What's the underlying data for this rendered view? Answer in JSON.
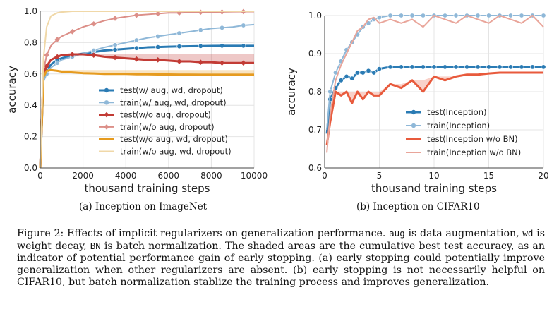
{
  "chart_data": [
    {
      "type": "line",
      "id": "imagenet",
      "xlabel": "thousand training steps",
      "ylabel": "accuracy",
      "xlim": [
        0,
        10000
      ],
      "ylim": [
        0,
        1.0
      ],
      "xticks": [
        "0",
        "2000",
        "4000",
        "6000",
        "8000",
        "10000"
      ],
      "xtick_values": [
        0,
        2000,
        4000,
        6000,
        8000,
        10000
      ],
      "yticks": [
        "0.0",
        "0.2",
        "0.4",
        "0.6",
        "0.8",
        "1.0"
      ],
      "ytick_values": [
        0,
        0.2,
        0.4,
        0.6,
        0.8,
        1.0
      ],
      "x": [
        0,
        150,
        300,
        500,
        800,
        1000,
        1500,
        2000,
        2500,
        3000,
        3500,
        4000,
        4500,
        5000,
        5500,
        6000,
        6500,
        7000,
        7500,
        8000,
        8500,
        9000,
        9500,
        10000
      ],
      "series": [
        {
          "name": "test(w/ aug, wd, dropout)",
          "color": "#2a7bb4",
          "marker": "o",
          "values": [
            0.0,
            0.57,
            0.62,
            0.66,
            0.69,
            0.7,
            0.72,
            0.73,
            0.74,
            0.75,
            0.755,
            0.76,
            0.765,
            0.77,
            0.772,
            0.774,
            0.776,
            0.777,
            0.778,
            0.779,
            0.78,
            0.78,
            0.78,
            0.78
          ]
        },
        {
          "name": "train(w/ aug, wd, dropout)",
          "color": "#8fb8d8",
          "marker": "o",
          "values": [
            0.0,
            0.55,
            0.6,
            0.64,
            0.67,
            0.69,
            0.71,
            0.73,
            0.75,
            0.77,
            0.785,
            0.8,
            0.815,
            0.83,
            0.84,
            0.85,
            0.86,
            0.87,
            0.88,
            0.89,
            0.895,
            0.9,
            0.91,
            0.915
          ]
        },
        {
          "name": "test(w/o aug, dropout)",
          "color": "#c23b35",
          "marker": "D",
          "values": [
            0.0,
            0.6,
            0.65,
            0.69,
            0.71,
            0.72,
            0.725,
            0.725,
            0.72,
            0.71,
            0.705,
            0.7,
            0.695,
            0.69,
            0.69,
            0.685,
            0.68,
            0.68,
            0.675,
            0.675,
            0.67,
            0.67,
            0.67,
            0.67
          ]
        },
        {
          "name": "train(w/o aug, dropout)",
          "color": "#dc8f88",
          "marker": "D",
          "values": [
            0.0,
            0.62,
            0.72,
            0.78,
            0.82,
            0.84,
            0.87,
            0.9,
            0.92,
            0.94,
            0.955,
            0.965,
            0.975,
            0.98,
            0.985,
            0.99,
            0.99,
            0.992,
            0.994,
            0.995,
            0.996,
            0.997,
            0.998,
            0.998
          ]
        },
        {
          "name": "test(w/o aug, wd, dropout)",
          "color": "#e69b1f",
          "marker": "",
          "values": [
            0.0,
            0.58,
            0.62,
            0.625,
            0.62,
            0.615,
            0.61,
            0.605,
            0.603,
            0.6,
            0.6,
            0.6,
            0.598,
            0.598,
            0.597,
            0.597,
            0.596,
            0.596,
            0.595,
            0.595,
            0.595,
            0.595,
            0.595,
            0.595
          ]
        },
        {
          "name": "train(w/o aug, wd, dropout)",
          "color": "#f0d8a8",
          "marker": "",
          "values": [
            0.0,
            0.7,
            0.9,
            0.97,
            0.99,
            0.995,
            1.0,
            1.0,
            1.0,
            1.0,
            1.0,
            1.0,
            1.0,
            1.0,
            1.0,
            1.0,
            1.0,
            1.0,
            1.0,
            1.0,
            1.0,
            1.0,
            1.0,
            1.0
          ]
        }
      ],
      "legend": "center-right"
    },
    {
      "type": "line",
      "id": "cifar10",
      "xlabel": "thousand training steps",
      "ylabel": "accuracy",
      "xlim": [
        0,
        20
      ],
      "ylim": [
        0.6,
        1.0
      ],
      "xticks": [
        "0",
        "5",
        "10",
        "15",
        "20"
      ],
      "xtick_values": [
        0,
        5,
        10,
        15,
        20
      ],
      "yticks": [
        "0.6",
        "0.7",
        "0.8",
        "0.9",
        "1.0"
      ],
      "ytick_values": [
        0.6,
        0.7,
        0.8,
        0.9,
        1.0
      ],
      "x": [
        0.2,
        0.5,
        1,
        1.5,
        2,
        2.5,
        3,
        3.5,
        4,
        4.5,
        5,
        6,
        7,
        8,
        9,
        10,
        11,
        12,
        13,
        14,
        15,
        16,
        17,
        18,
        19,
        20
      ],
      "series": [
        {
          "name": "test(Inception)",
          "color": "#2a7bb4",
          "marker": "o",
          "values": [
            0.69,
            0.78,
            0.81,
            0.83,
            0.84,
            0.835,
            0.85,
            0.85,
            0.855,
            0.85,
            0.86,
            0.865,
            0.865,
            0.865,
            0.865,
            0.865,
            0.865,
            0.865,
            0.865,
            0.865,
            0.865,
            0.865,
            0.865,
            0.865,
            0.865,
            0.865
          ]
        },
        {
          "name": "train(Inception)",
          "color": "#8fb8d8",
          "marker": "o",
          "values": [
            0.7,
            0.8,
            0.85,
            0.88,
            0.91,
            0.93,
            0.95,
            0.97,
            0.98,
            0.99,
            0.995,
            1.0,
            1.0,
            1.0,
            1.0,
            1.0,
            1.0,
            1.0,
            1.0,
            1.0,
            1.0,
            1.0,
            1.0,
            1.0,
            1.0,
            1.0
          ]
        },
        {
          "name": "test(Inception w/o BN)",
          "color": "#e85a3c",
          "marker": "",
          "values": [
            0.66,
            0.72,
            0.8,
            0.79,
            0.8,
            0.77,
            0.8,
            0.78,
            0.8,
            0.79,
            0.79,
            0.82,
            0.81,
            0.83,
            0.8,
            0.84,
            0.83,
            0.84,
            0.845,
            0.845,
            0.848,
            0.85,
            0.85,
            0.85,
            0.85,
            0.85
          ]
        },
        {
          "name": "train(Inception w/o BN)",
          "color": "#e9a59a",
          "marker": "",
          "values": [
            0.64,
            0.74,
            0.83,
            0.87,
            0.9,
            0.93,
            0.96,
            0.97,
            0.99,
            0.995,
            0.98,
            0.99,
            0.98,
            0.99,
            0.97,
            1.0,
            0.99,
            0.98,
            1.0,
            0.99,
            0.98,
            1.0,
            0.99,
            0.98,
            1.0,
            0.97
          ]
        }
      ],
      "legend": "lower-right"
    }
  ],
  "subcaptions": {
    "a": "(a) Inception on ImageNet",
    "b": "(b) Inception on CIFAR10"
  },
  "caption": {
    "p1": "Figure 2: Effects of implicit regularizers on generalization performance. ",
    "aug": "aug",
    "p2": " is data augmentation,",
    "wd": "wd",
    "p3": " is weight decay, ",
    "bn": "BN",
    "p4": " is batch normalization. The shaded areas are the cumulative best test accuracy, as an indicator of potential performance gain of early stopping. (a) early stopping could potentially improve generalization when other regularizers are absent. (b) early stopping is not necessarily helpful on CIFAR10, but batch normalization stablize the training process and improves generalization."
  }
}
